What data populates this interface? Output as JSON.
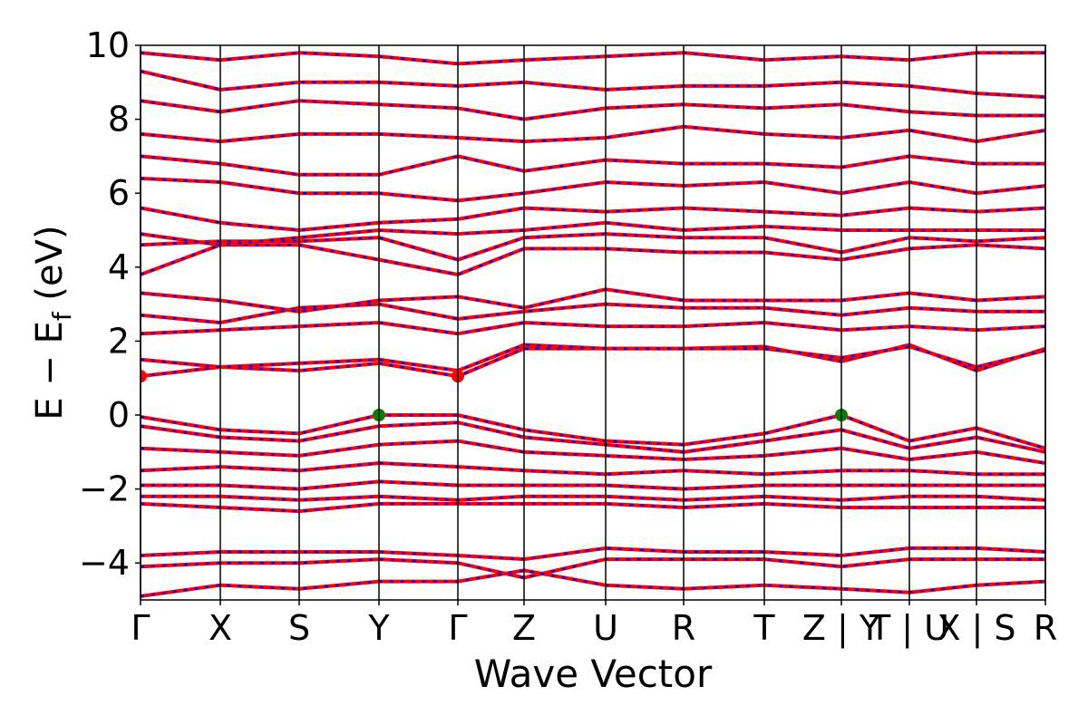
{
  "chart_data": {
    "type": "band",
    "xlabel": "Wave Vector",
    "ylabel": [
      "E − E",
      "f",
      " (eV)"
    ],
    "xlim": [
      0,
      9.98
    ],
    "ylim": [
      -5,
      10
    ],
    "xticks": [
      {
        "value": 0,
        "label": "Γ"
      },
      {
        "value": 0.88,
        "label": "X"
      },
      {
        "value": 1.75,
        "label": "S"
      },
      {
        "value": 2.63,
        "label": "Y"
      },
      {
        "value": 3.5,
        "label": "Γ"
      },
      {
        "value": 4.23,
        "label": "Z"
      },
      {
        "value": 5.13,
        "label": "U"
      },
      {
        "value": 5.99,
        "label": "R"
      },
      {
        "value": 6.88,
        "label": "T"
      },
      {
        "value": 7.73,
        "label": "Z | Y"
      },
      {
        "value": 8.48,
        "label": "T | U"
      },
      {
        "value": 9.22,
        "label": "X | S"
      },
      {
        "value": 9.98,
        "label": "R"
      }
    ],
    "yticks": [
      {
        "value": -4,
        "label": "−4"
      },
      {
        "value": -2,
        "label": "−2"
      },
      0,
      2,
      4,
      6,
      8,
      10
    ],
    "band_color": "#ff0000",
    "band_dash_color": "#0000ff",
    "bands": [
      [
        -0.05,
        -0.4,
        -0.5,
        0,
        0,
        -0.4,
        -0.7,
        -0.8,
        -0.5,
        0,
        -0.7,
        -0.35,
        -0.9
      ],
      [
        -0.3,
        -0.6,
        -0.7,
        -0.3,
        -0.2,
        -0.6,
        -0.8,
        -1.0,
        -0.7,
        -0.4,
        -0.9,
        -0.6,
        -1.0
      ],
      [
        -0.9,
        -1.0,
        -1.1,
        -0.8,
        -0.7,
        -1.0,
        -1.1,
        -1.2,
        -1.1,
        -0.9,
        -1.2,
        -1.0,
        -1.3
      ],
      [
        -1.5,
        -1.4,
        -1.5,
        -1.3,
        -1.4,
        -1.5,
        -1.6,
        -1.5,
        -1.6,
        -1.5,
        -1.5,
        -1.6,
        -1.6
      ],
      [
        -1.9,
        -1.9,
        -2.0,
        -1.8,
        -1.9,
        -1.9,
        -1.9,
        -2.0,
        -1.9,
        -1.9,
        -1.9,
        -1.9,
        -1.9
      ],
      [
        -2.2,
        -2.2,
        -2.3,
        -2.2,
        -2.3,
        -2.2,
        -2.2,
        -2.3,
        -2.2,
        -2.3,
        -2.2,
        -2.2,
        -2.3
      ],
      [
        -2.4,
        -2.5,
        -2.6,
        -2.4,
        -2.4,
        -2.4,
        -2.4,
        -2.5,
        -2.4,
        -2.5,
        -2.5,
        -2.5,
        -2.5
      ],
      [
        -3.8,
        -3.7,
        -3.7,
        -3.7,
        -3.8,
        -3.9,
        -3.6,
        -3.7,
        -3.7,
        -3.8,
        -3.6,
        -3.6,
        -3.7
      ],
      [
        -4.1,
        -4.0,
        -4.0,
        -3.9,
        -4.0,
        -4.4,
        -3.9,
        -3.9,
        -3.9,
        -4.1,
        -3.9,
        -3.9,
        -3.9
      ],
      [
        -4.9,
        -4.6,
        -4.7,
        -4.5,
        -4.5,
        -4.2,
        -4.6,
        -4.7,
        -4.6,
        -4.7,
        -4.8,
        -4.6,
        -4.5
      ],
      [
        1.05,
        1.3,
        1.2,
        1.4,
        1.05,
        1.8,
        1.8,
        1.8,
        1.85,
        1.45,
        1.9,
        1.2,
        1.8
      ],
      [
        1.5,
        1.3,
        1.4,
        1.5,
        1.2,
        1.9,
        1.8,
        1.8,
        1.8,
        1.55,
        1.85,
        1.3,
        1.75
      ],
      [
        2.2,
        2.3,
        2.4,
        2.5,
        2.2,
        2.5,
        2.4,
        2.4,
        2.5,
        2.3,
        2.4,
        2.3,
        2.4
      ],
      [
        2.7,
        2.5,
        2.9,
        3.0,
        2.6,
        2.8,
        3.0,
        2.9,
        2.9,
        2.7,
        2.9,
        2.8,
        2.8
      ],
      [
        3.3,
        3.1,
        2.8,
        3.1,
        3.2,
        2.9,
        3.4,
        3.1,
        3.1,
        3.1,
        3.3,
        3.1,
        3.2
      ],
      [
        3.8,
        4.6,
        4.6,
        4.2,
        3.8,
        4.5,
        4.5,
        4.4,
        4.4,
        4.2,
        4.5,
        4.6,
        4.5
      ],
      [
        4.6,
        4.7,
        4.7,
        4.8,
        4.2,
        4.8,
        4.9,
        4.8,
        4.8,
        4.4,
        4.8,
        4.7,
        4.8
      ],
      [
        4.9,
        4.6,
        4.8,
        5.0,
        4.9,
        5.0,
        5.2,
        5.0,
        5.1,
        5.0,
        5.0,
        5.0,
        5.0
      ],
      [
        5.6,
        5.2,
        5.0,
        5.2,
        5.3,
        5.6,
        5.5,
        5.6,
        5.5,
        5.4,
        5.6,
        5.5,
        5.6
      ],
      [
        6.4,
        6.3,
        6.0,
        6.0,
        5.8,
        6.0,
        6.3,
        6.2,
        6.3,
        6.0,
        6.3,
        6.0,
        6.2
      ],
      [
        7.0,
        6.8,
        6.5,
        6.5,
        7.0,
        6.6,
        6.9,
        6.8,
        6.8,
        6.7,
        7.0,
        6.8,
        6.8
      ],
      [
        7.6,
        7.4,
        7.6,
        7.6,
        7.5,
        7.4,
        7.5,
        7.8,
        7.6,
        7.5,
        7.7,
        7.4,
        7.7
      ],
      [
        8.5,
        8.2,
        8.5,
        8.4,
        8.3,
        8.0,
        8.3,
        8.4,
        8.3,
        8.4,
        8.2,
        8.1,
        8.1
      ],
      [
        9.3,
        8.8,
        9.0,
        9.0,
        8.9,
        9.0,
        8.8,
        8.9,
        8.9,
        9.0,
        8.9,
        8.7,
        8.6
      ],
      [
        9.8,
        9.6,
        9.8,
        9.7,
        9.5,
        9.6,
        9.7,
        9.8,
        9.6,
        9.7,
        9.6,
        9.8,
        9.8
      ]
    ],
    "points": [
      {
        "x": [
          2.63,
          7.73
        ],
        "y": [
          0,
          0
        ],
        "color": "#008000"
      },
      {
        "x": [
          0,
          3.5
        ],
        "y": [
          1.05,
          1.05
        ],
        "color": "#ff0000"
      }
    ]
  }
}
